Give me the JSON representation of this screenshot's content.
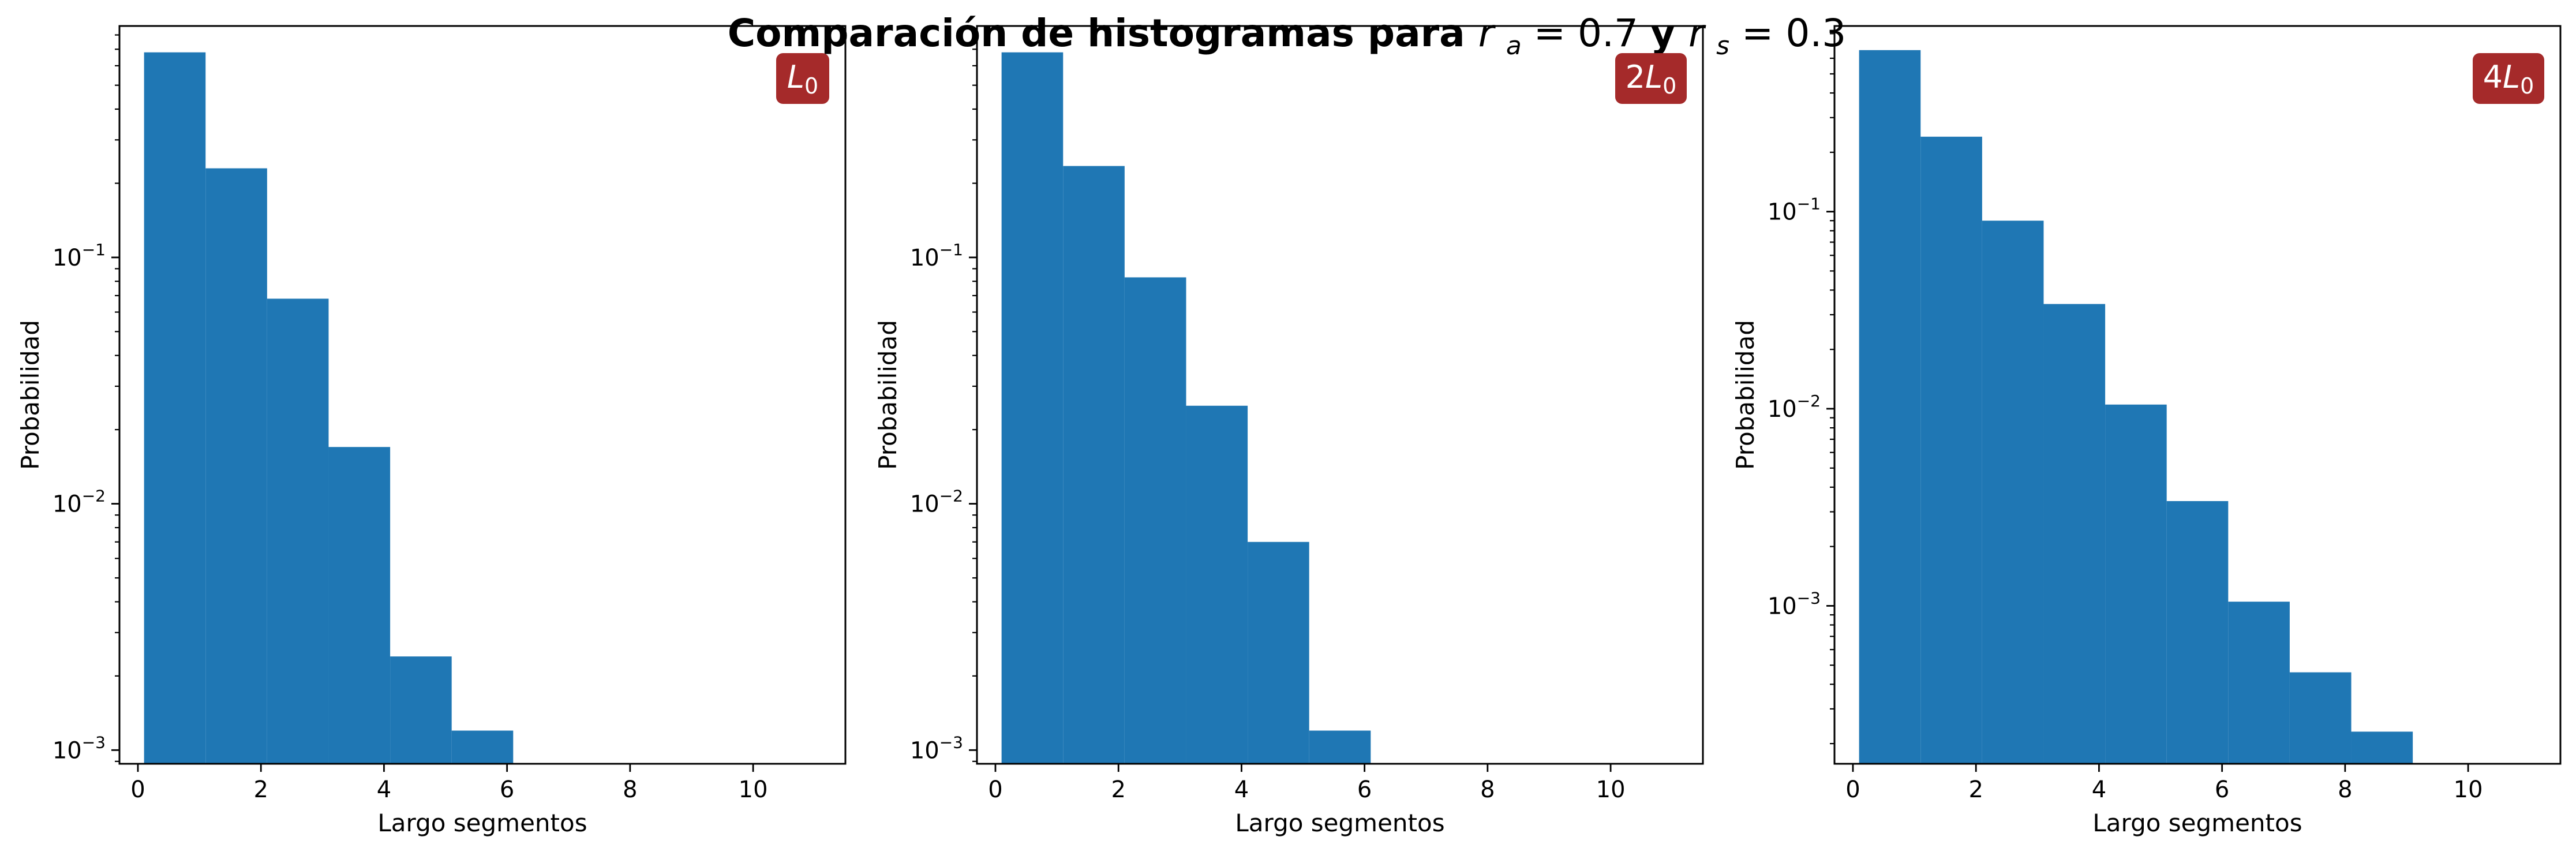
{
  "figure": {
    "title_bold": "Comparación de histogramas para ",
    "title_math_a": "r",
    "title_math_a_sub": "a",
    "title_math_a_val": " = 0.7",
    "title_mid": " y ",
    "title_math_s": "r",
    "title_math_s_sub": "s",
    "title_math_s_val": " = 0.3"
  },
  "colors": {
    "bar": "#1f77b4",
    "badge": "#a52a2a",
    "badge_text": "#ffffff",
    "axis": "#000000"
  },
  "chart_data": [
    {
      "type": "bar",
      "badge": {
        "prefix": "",
        "var": "L",
        "sub": "0"
      },
      "xlabel": "Largo segmentos",
      "ylabel": "Probabilidad",
      "yscale": "log",
      "xlim": [
        -0.3,
        11.5
      ],
      "ylim": [
        0.00088,
        0.87
      ],
      "xticks": [
        0,
        2,
        4,
        6,
        8,
        10
      ],
      "yticks": [
        {
          "value": 0.1,
          "base": "10",
          "exp": "−1"
        },
        {
          "value": 0.01,
          "base": "10",
          "exp": "−2"
        },
        {
          "value": 0.001,
          "base": "10",
          "exp": "−3"
        }
      ],
      "bin_edges": [
        0.1,
        1.1,
        2.1,
        3.1,
        4.1,
        5.1,
        6.1
      ],
      "values": [
        0.68,
        0.23,
        0.068,
        0.017,
        0.0024,
        0.0012
      ]
    },
    {
      "type": "bar",
      "badge": {
        "prefix": "2",
        "var": "L",
        "sub": "0"
      },
      "xlabel": "Largo segmentos",
      "ylabel": "Probabilidad",
      "yscale": "log",
      "xlim": [
        -0.3,
        11.5
      ],
      "ylim": [
        0.00088,
        0.87
      ],
      "xticks": [
        0,
        2,
        4,
        6,
        8,
        10
      ],
      "yticks": [
        {
          "value": 0.1,
          "base": "10",
          "exp": "−1"
        },
        {
          "value": 0.01,
          "base": "10",
          "exp": "−2"
        },
        {
          "value": 0.001,
          "base": "10",
          "exp": "−3"
        }
      ],
      "bin_edges": [
        0.1,
        1.1,
        2.1,
        3.1,
        4.1,
        5.1,
        6.1
      ],
      "values": [
        0.68,
        0.235,
        0.083,
        0.025,
        0.007,
        0.0012
      ]
    },
    {
      "type": "bar",
      "badge": {
        "prefix": "4",
        "var": "L",
        "sub": "0"
      },
      "xlabel": "Largo segmentos",
      "ylabel": "Probabilidad",
      "yscale": "log",
      "xlim": [
        -0.3,
        11.5
      ],
      "ylim": [
        0.000158,
        0.875
      ],
      "xticks": [
        0,
        2,
        4,
        6,
        8,
        10
      ],
      "yticks": [
        {
          "value": 0.1,
          "base": "10",
          "exp": "−1"
        },
        {
          "value": 0.01,
          "base": "10",
          "exp": "−2"
        },
        {
          "value": 0.001,
          "base": "10",
          "exp": "−3"
        }
      ],
      "bin_edges": [
        0.1,
        1.1,
        2.1,
        3.1,
        4.1,
        5.1,
        6.1,
        7.1,
        8.1,
        9.1
      ],
      "values": [
        0.66,
        0.24,
        0.09,
        0.034,
        0.0105,
        0.0034,
        0.00105,
        0.00046,
        0.00023
      ]
    }
  ]
}
